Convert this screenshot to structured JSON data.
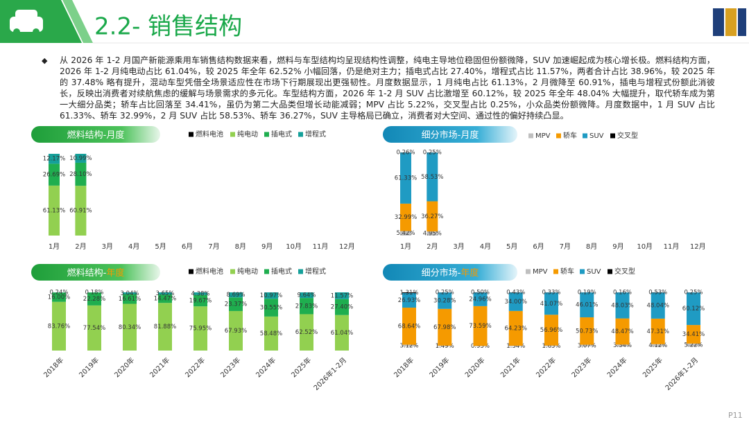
{
  "header": {
    "title": "2.2- 销售结构"
  },
  "bullet": "◆",
  "paragraph": "从 2026 年 1-2 月国产新能源乘用车销售结构数据来看，燃料与车型结构均呈现结构性调整，纯电主导地位稳固但份额微降，SUV 加速崛起成为核心增长极。燃料结构方面，2026 年 1-2 月纯电动占比 61.04%，较 2025 年全年 62.52% 小幅回落，仍是绝对主力；插电式占比 27.40%，增程式占比 11.57%，两者合计占比 38.96%，较 2025 年的 37.48% 略有提升，混动车型凭借全场景适应性在市场下行期展现出更强韧性。月度数据显示，1 月纯电占比 61.13%，2 月微降至 60.91%，插电与增程式份额此消彼长，反映出消费者对续航焦虑的缓解与场景需求的多元化。车型结构方面，2026 年 1-2 月 SUV 占比激增至 60.12%，较 2025 年全年 48.04% 大幅提升，取代轿车成为第一大细分品类；轿车占比回落至 34.41%，虽仍为第二大品类但增长动能减弱；MPV 占比 5.22%，交叉型占比 0.25%，小众品类份额微降。月度数据中，1 月 SUV 占比 61.33%、轿车 32.99%，2 月 SUV 占比 58.53%、轿车 36.27%，SUV 主导格局已确立，消费者对大空间、通过性的偏好持续凸显。",
  "page_number": "P11",
  "chart_data": [
    {
      "type": "bar",
      "stacked": true,
      "title": [
        "燃料结构-月度"
      ],
      "ylim": [
        0,
        100
      ],
      "categories": [
        "1月",
        "2月",
        "3月",
        "4月",
        "5月",
        "6月",
        "7月",
        "8月",
        "9月",
        "10月",
        "11月",
        "12月"
      ],
      "series": [
        {
          "name": "燃料电池",
          "color": "#000000",
          "values": [
            0,
            0,
            null,
            null,
            null,
            null,
            null,
            null,
            null,
            null,
            null,
            null
          ]
        },
        {
          "name": "纯电动",
          "color": "#92d050",
          "values": [
            61.13,
            60.91,
            null,
            null,
            null,
            null,
            null,
            null,
            null,
            null,
            null,
            null
          ],
          "value_labels": [
            "61.13%",
            "60.91%",
            null,
            null,
            null,
            null,
            null,
            null,
            null,
            null,
            null,
            null
          ]
        },
        {
          "name": "插电式",
          "color": "#1fae4f",
          "values": [
            26.69,
            28.1,
            null,
            null,
            null,
            null,
            null,
            null,
            null,
            null,
            null,
            null
          ],
          "value_labels": [
            "26.69%",
            "28.10%",
            null,
            null,
            null,
            null,
            null,
            null,
            null,
            null,
            null,
            null
          ]
        },
        {
          "name": "增程式",
          "color": "#15a09a",
          "values": [
            12.17,
            10.99,
            null,
            null,
            null,
            null,
            null,
            null,
            null,
            null,
            null,
            null
          ],
          "value_labels": [
            "12.17%",
            "10.99%",
            null,
            null,
            null,
            null,
            null,
            null,
            null,
            null,
            null,
            null
          ]
        }
      ]
    },
    {
      "type": "bar",
      "stacked": true,
      "title": [
        "细分市场-月度"
      ],
      "ylim": [
        0,
        100
      ],
      "categories": [
        "1月",
        "2月",
        "3月",
        "4月",
        "5月",
        "6月",
        "7月",
        "8月",
        "9月",
        "10月",
        "11月",
        "12月"
      ],
      "series": [
        {
          "name": "MPV",
          "color": "#bfbfbf",
          "values": [
            5.42,
            4.95,
            null,
            null,
            null,
            null,
            null,
            null,
            null,
            null,
            null,
            null
          ],
          "value_labels": [
            "5.42%",
            "4.95%",
            null,
            null,
            null,
            null,
            null,
            null,
            null,
            null,
            null,
            null
          ]
        },
        {
          "name": "轿车",
          "color": "#f59a00",
          "values": [
            32.99,
            36.27,
            null,
            null,
            null,
            null,
            null,
            null,
            null,
            null,
            null,
            null
          ],
          "value_labels": [
            "32.99%",
            "36.27%",
            null,
            null,
            null,
            null,
            null,
            null,
            null,
            null,
            null,
            null
          ]
        },
        {
          "name": "SUV",
          "color": "#1f9bc3",
          "values": [
            61.33,
            58.53,
            null,
            null,
            null,
            null,
            null,
            null,
            null,
            null,
            null,
            null
          ],
          "value_labels": [
            "61.33%",
            "58.53%",
            null,
            null,
            null,
            null,
            null,
            null,
            null,
            null,
            null,
            null
          ]
        },
        {
          "name": "交叉型",
          "color": "#000000",
          "values": [
            0.26,
            0.25,
            null,
            null,
            null,
            null,
            null,
            null,
            null,
            null,
            null,
            null
          ],
          "value_labels": [
            "0.26%",
            "0.25%",
            null,
            null,
            null,
            null,
            null,
            null,
            null,
            null,
            null,
            null
          ]
        }
      ]
    },
    {
      "type": "bar",
      "stacked": true,
      "title": [
        "燃料结构-",
        "年度"
      ],
      "ylim": [
        0,
        100
      ],
      "categories": [
        "2018年",
        "2019年",
        "2020年",
        "2021年",
        "2022年",
        "2023年",
        "2024年",
        "2025年",
        "2026年1-2月"
      ],
      "series": [
        {
          "name": "燃料电池",
          "color": "#000000",
          "values": [
            0,
            0,
            0,
            0,
            0,
            0,
            0,
            0,
            0
          ]
        },
        {
          "name": "纯电动",
          "color": "#92d050",
          "values": [
            83.76,
            77.54,
            80.34,
            81.88,
            75.95,
            67.93,
            58.48,
            62.52,
            61.04
          ],
          "value_labels": [
            "83.76%",
            "77.54%",
            "80.34%",
            "81.88%",
            "75.95%",
            "67.93%",
            "58.48%",
            "62.52%",
            "61.04%"
          ]
        },
        {
          "name": "插电式",
          "color": "#1fae4f",
          "values": [
            16.0,
            22.28,
            16.61,
            14.47,
            19.67,
            23.37,
            30.55,
            27.83,
            27.4
          ],
          "value_labels": [
            "16.00%",
            "22.28%",
            "16.61%",
            "14.47%",
            "19.67%",
            "23.37%",
            "30.55%",
            "27.83%",
            "27.40%"
          ]
        },
        {
          "name": "增程式",
          "color": "#15a09a",
          "values": [
            0.24,
            0.18,
            3.04,
            3.65,
            4.38,
            8.69,
            10.97,
            9.64,
            11.57
          ],
          "value_labels": [
            "0.24%",
            "0.18%",
            "3.04%",
            "3.65%",
            "4.38%",
            "8.69%",
            "10.97%",
            "9.64%",
            "11.57%"
          ]
        }
      ]
    },
    {
      "type": "bar",
      "stacked": true,
      "title": [
        "细分市场-",
        "年度"
      ],
      "ylim": [
        0,
        100
      ],
      "categories": [
        "2018年",
        "2019年",
        "2020年",
        "2021年",
        "2022年",
        "2023年",
        "2024年",
        "2025年",
        "2026年1-2月"
      ],
      "series": [
        {
          "name": "MPV",
          "color": "#bfbfbf",
          "values": [
            3.12,
            1.49,
            0.95,
            1.34,
            1.65,
            3.07,
            3.34,
            4.12,
            5.22
          ],
          "value_labels": [
            "3.12%",
            "1.49%",
            "0.95%",
            "1.34%",
            "1.65%",
            "3.07%",
            "3.34%",
            "4.12%",
            "5.22%"
          ]
        },
        {
          "name": "轿车",
          "color": "#f59a00",
          "values": [
            68.64,
            67.98,
            73.59,
            64.23,
            56.96,
            50.73,
            48.47,
            47.31,
            34.41
          ],
          "value_labels": [
            "68.64%",
            "67.98%",
            "73.59%",
            "64.23%",
            "56.96%",
            "50.73%",
            "48.47%",
            "47.31%",
            "34.41%"
          ]
        },
        {
          "name": "SUV",
          "color": "#1f9bc3",
          "values": [
            26.93,
            30.28,
            24.96,
            34.0,
            41.07,
            46.01,
            48.03,
            48.04,
            60.12
          ],
          "value_labels": [
            "26.93%",
            "30.28%",
            "24.96%",
            "34.00%",
            "41.07%",
            "46.01%",
            "48.03%",
            "48.04%",
            "60.12%"
          ]
        },
        {
          "name": "交叉型",
          "color": "#000000",
          "values": [
            1.31,
            0.25,
            0.5,
            0.43,
            0.33,
            0.19,
            0.16,
            0.53,
            0.25
          ],
          "value_labels": [
            "1.31%",
            "0.25%",
            "0.50%",
            "0.43%",
            "0.33%",
            "0.19%",
            "0.16%",
            "0.53%",
            "0.25%"
          ]
        }
      ]
    }
  ]
}
